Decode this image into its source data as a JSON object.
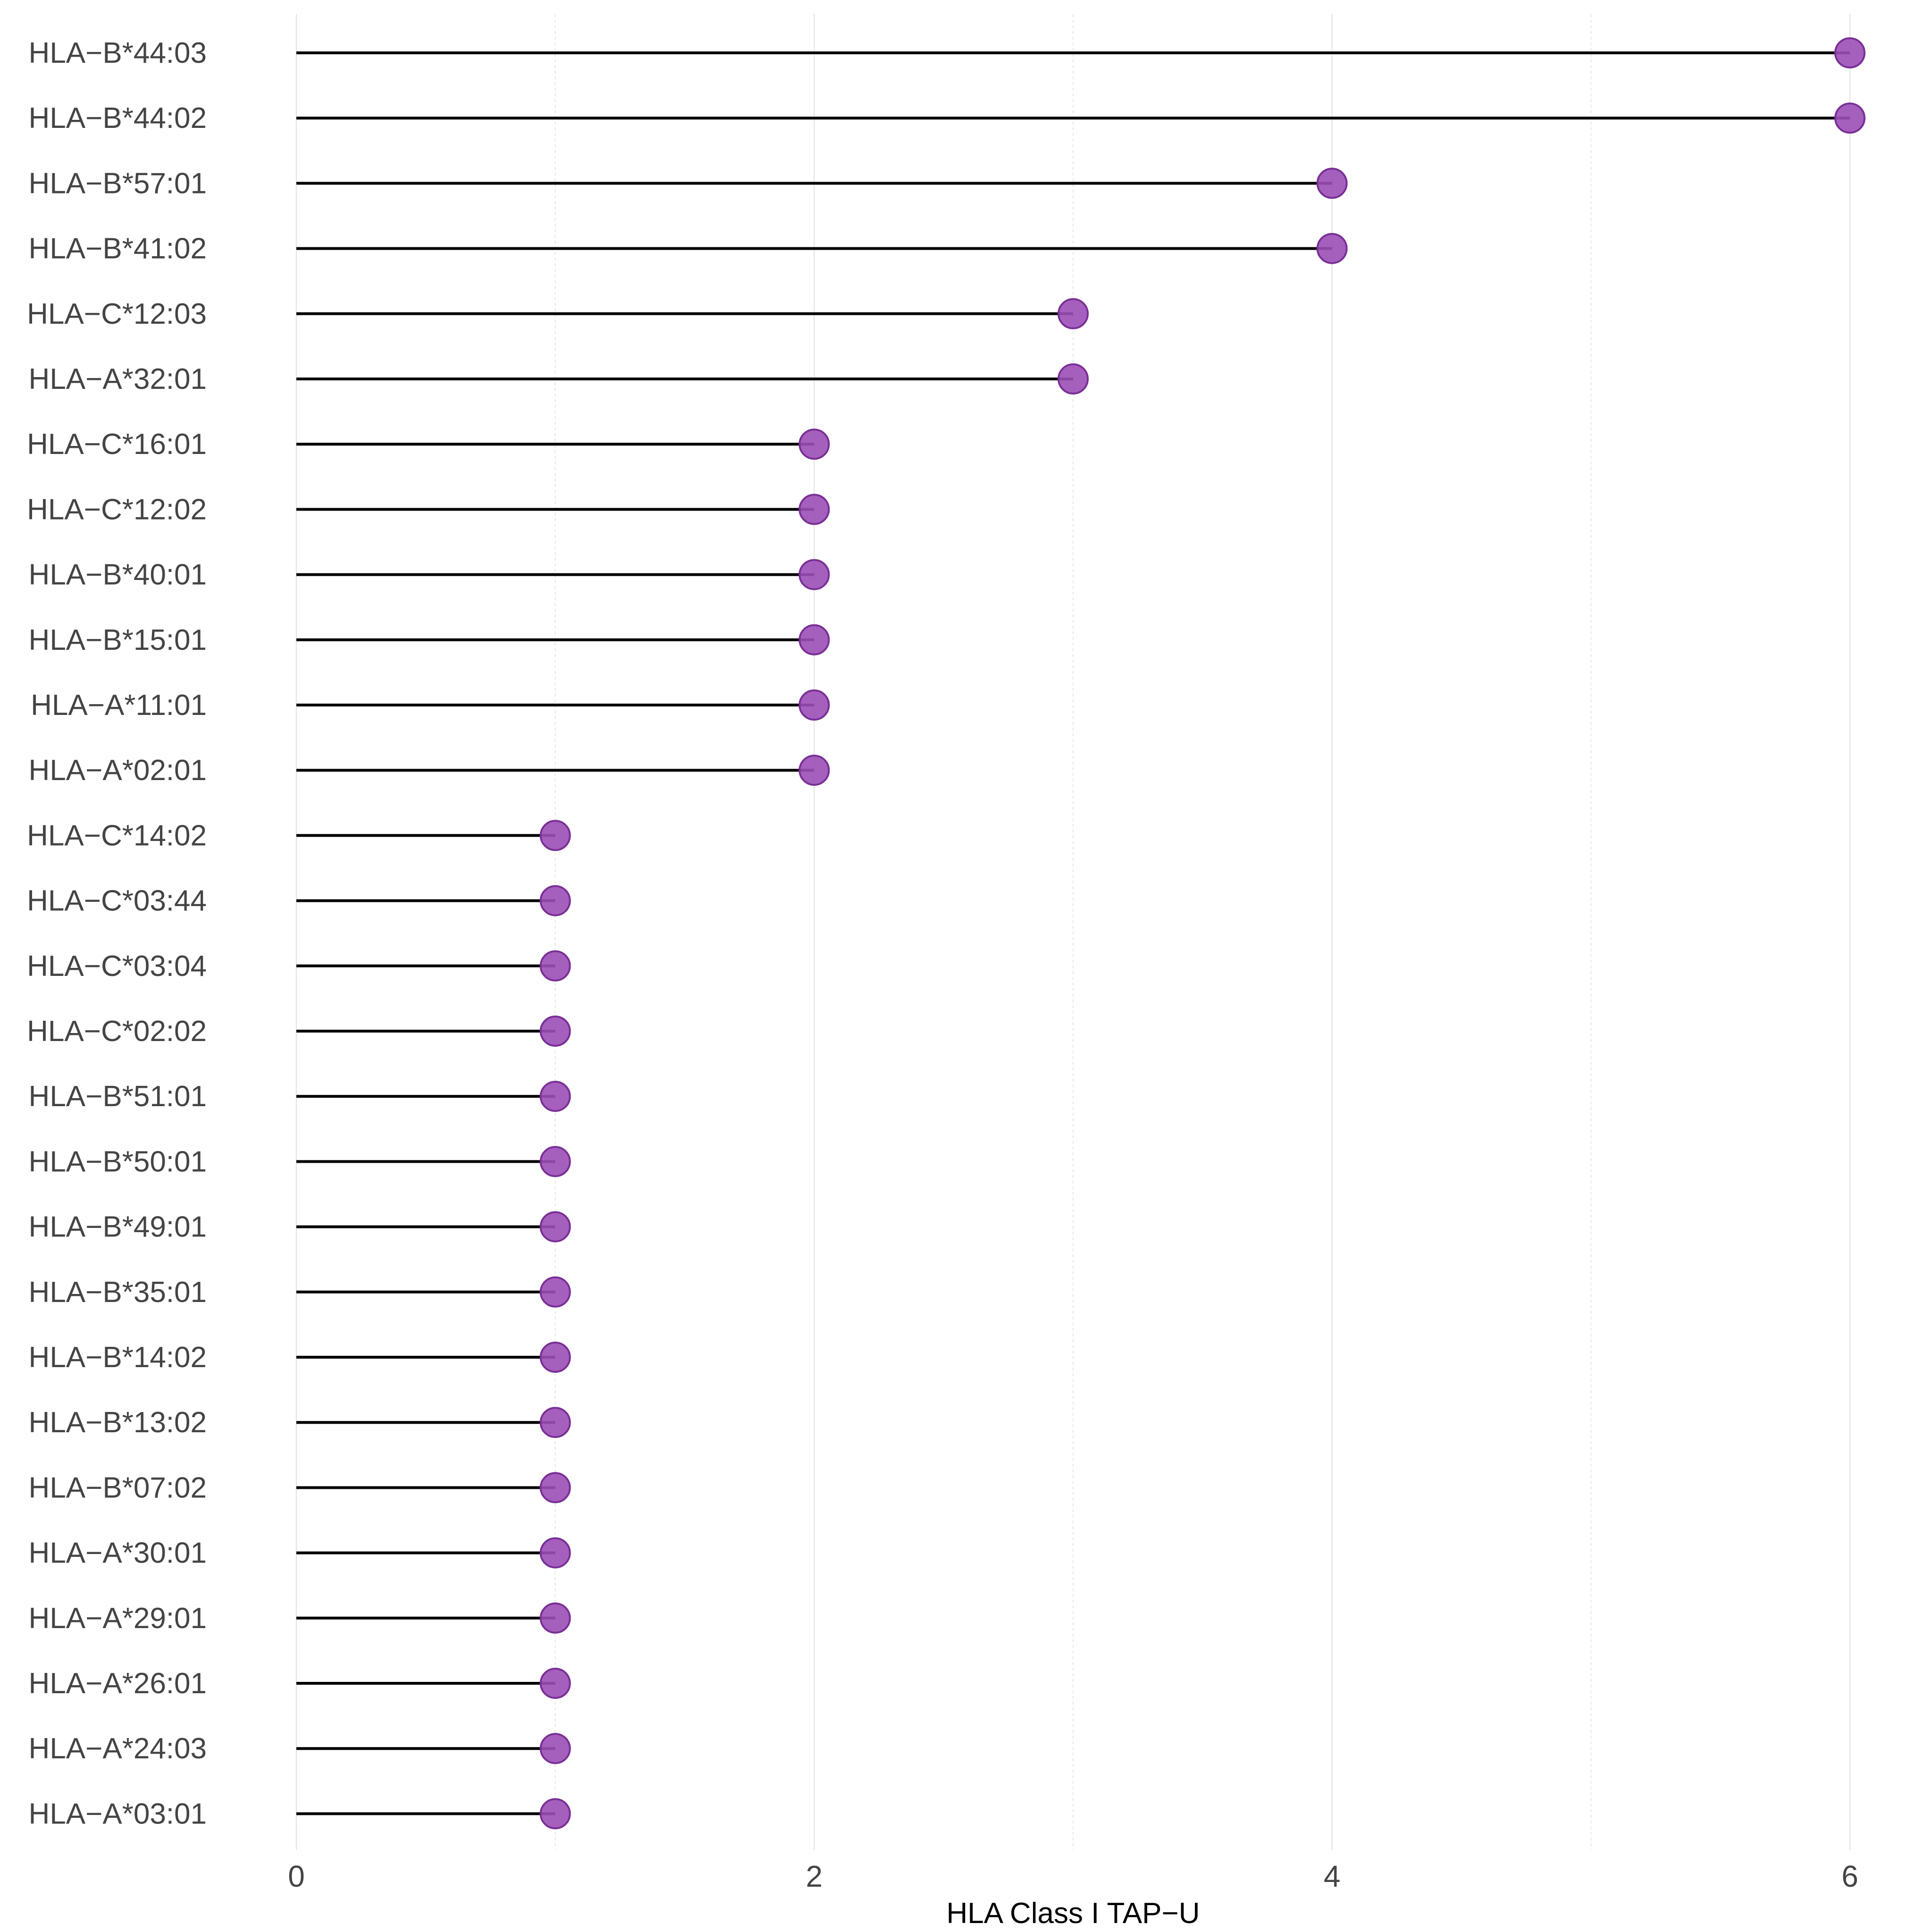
{
  "chart_data": {
    "type": "lollipop",
    "title": "",
    "xlabel": "HLA Class I TAP−U",
    "ylabel": "",
    "xlim": [
      0,
      6
    ],
    "x_ticks": [
      "0",
      "2",
      "4",
      "6"
    ],
    "grid": "vertical",
    "legend": "none",
    "colors": {
      "point_fill": "#9b4fb6",
      "point_stroke": "#7a2f96",
      "stem": "#000000"
    },
    "categories": [
      "HLA−B*44:03",
      "HLA−B*44:02",
      "HLA−B*57:01",
      "HLA−B*41:02",
      "HLA−C*12:03",
      "HLA−A*32:01",
      "HLA−C*16:01",
      "HLA−C*12:02",
      "HLA−B*40:01",
      "HLA−B*15:01",
      "HLA−A*11:01",
      "HLA−A*02:01",
      "HLA−C*14:02",
      "HLA−C*03:44",
      "HLA−C*03:04",
      "HLA−C*02:02",
      "HLA−B*51:01",
      "HLA−B*50:01",
      "HLA−B*49:01",
      "HLA−B*35:01",
      "HLA−B*14:02",
      "HLA−B*13:02",
      "HLA−B*07:02",
      "HLA−A*30:01",
      "HLA−A*29:01",
      "HLA−A*26:01",
      "HLA−A*24:03",
      "HLA−A*03:01"
    ],
    "values": [
      6,
      6,
      4,
      4,
      3,
      3,
      2,
      2,
      2,
      2,
      2,
      2,
      1,
      1,
      1,
      1,
      1,
      1,
      1,
      1,
      1,
      1,
      1,
      1,
      1,
      1,
      1,
      1
    ]
  }
}
